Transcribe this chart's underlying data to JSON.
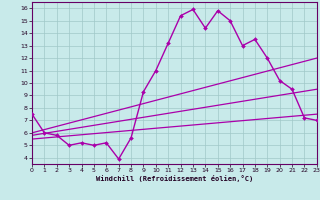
{
  "xlabel": "Windchill (Refroidissement éolien,°C)",
  "bg_color": "#c8eaea",
  "line_color": "#aa00aa",
  "grid_color": "#a0c8c8",
  "spine_color": "#660066",
  "tick_color": "#220022",
  "xlim": [
    0,
    23
  ],
  "ylim": [
    3.5,
    16.5
  ],
  "yticks": [
    4,
    5,
    6,
    7,
    8,
    9,
    10,
    11,
    12,
    13,
    14,
    15,
    16
  ],
  "xticks": [
    0,
    1,
    2,
    3,
    4,
    5,
    6,
    7,
    8,
    9,
    10,
    11,
    12,
    13,
    14,
    15,
    16,
    17,
    18,
    19,
    20,
    21,
    22,
    23
  ],
  "series": [
    {
      "x": [
        0,
        1,
        2,
        3,
        4,
        5,
        6,
        7,
        8,
        9,
        10,
        11,
        12,
        13,
        14,
        15,
        16,
        17,
        18,
        19,
        20,
        21,
        22,
        23
      ],
      "y": [
        7.5,
        6.0,
        5.8,
        5.0,
        5.2,
        5.0,
        5.2,
        3.9,
        5.6,
        9.3,
        11.0,
        13.2,
        15.4,
        15.9,
        14.4,
        15.8,
        15.0,
        13.0,
        13.5,
        12.0,
        10.2,
        9.5,
        7.2,
        7.0
      ],
      "marker": "D",
      "markersize": 2.0,
      "linewidth": 1.0
    },
    {
      "x": [
        0,
        23
      ],
      "y": [
        6.0,
        12.0
      ],
      "marker": null,
      "markersize": 0,
      "linewidth": 0.9
    },
    {
      "x": [
        0,
        23
      ],
      "y": [
        5.8,
        9.5
      ],
      "marker": null,
      "markersize": 0,
      "linewidth": 0.9
    },
    {
      "x": [
        0,
        23
      ],
      "y": [
        5.5,
        7.5
      ],
      "marker": null,
      "markersize": 0,
      "linewidth": 0.9
    }
  ],
  "tick_labelsize": 4.5,
  "xlabel_fontsize": 5.0,
  "xlabel_fontweight": "bold"
}
